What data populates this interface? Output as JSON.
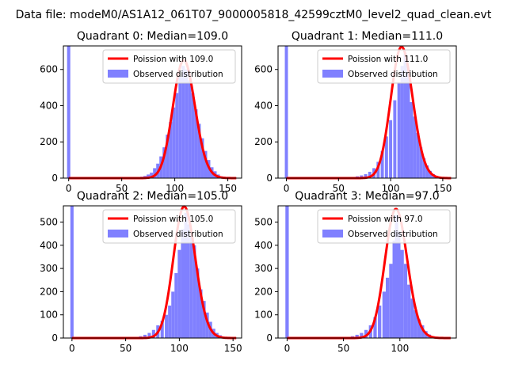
{
  "figure": {
    "suptitle": "Data file: modeM0/AS1A12_061T07_9000005818_42599cztM0_level2_quad_clean.evt"
  },
  "colors": {
    "hist": "#8080ff",
    "model": "#ff0000",
    "axis": "#000000",
    "legend_border": "#cccccc"
  },
  "chart_data": [
    {
      "type": "bar",
      "title": "Quadrant 0: Median=109.0",
      "median": 109.0,
      "xlim": [
        -5,
        163
      ],
      "ylim": [
        0,
        730
      ],
      "xticks": [
        0,
        50,
        100,
        150
      ],
      "yticks": [
        0,
        200,
        400,
        600
      ],
      "legend": [
        "Poission with 109.0",
        "Observed distribution"
      ],
      "legend_loc": "upper right",
      "spike": {
        "x": 0,
        "value": 730
      },
      "bins": [
        [
          56,
          1
        ],
        [
          60,
          2
        ],
        [
          63,
          3
        ],
        [
          66,
          5
        ],
        [
          69,
          8
        ],
        [
          72,
          12
        ],
        [
          75,
          20
        ],
        [
          78,
          30
        ],
        [
          81,
          55
        ],
        [
          84,
          80
        ],
        [
          87,
          120
        ],
        [
          90,
          170
        ],
        [
          93,
          240
        ],
        [
          96,
          310
        ],
        [
          99,
          390
        ],
        [
          102,
          470
        ],
        [
          105,
          560
        ],
        [
          108,
          620
        ],
        [
          111,
          600
        ],
        [
          114,
          540
        ],
        [
          117,
          470
        ],
        [
          120,
          380
        ],
        [
          123,
          300
        ],
        [
          126,
          220
        ],
        [
          129,
          150
        ],
        [
          132,
          100
        ],
        [
          135,
          60
        ],
        [
          138,
          38
        ],
        [
          141,
          20
        ],
        [
          144,
          10
        ],
        [
          147,
          5
        ],
        [
          150,
          2
        ]
      ]
    },
    {
      "type": "bar",
      "title": "Quadrant 1: Median=111.0",
      "median": 111.0,
      "xlim": [
        -8,
        163
      ],
      "ylim": [
        0,
        730
      ],
      "xticks": [
        0,
        50,
        100,
        150
      ],
      "yticks": [
        0,
        200,
        400,
        600
      ],
      "legend": [
        "Poission with 111.0",
        "Observed distribution"
      ],
      "legend_loc": "upper right",
      "spike": {
        "x": 0,
        "value": 730
      },
      "bins": [
        [
          60,
          3
        ],
        [
          64,
          6
        ],
        [
          68,
          10
        ],
        [
          72,
          15
        ],
        [
          76,
          22
        ],
        [
          80,
          35
        ],
        [
          84,
          55
        ],
        [
          88,
          90
        ],
        [
          92,
          150
        ],
        [
          96,
          230
        ],
        [
          100,
          320
        ],
        [
          104,
          430
        ],
        [
          108,
          530
        ],
        [
          111,
          620
        ],
        [
          114,
          690
        ],
        [
          117,
          600
        ],
        [
          120,
          420
        ],
        [
          123,
          340
        ],
        [
          126,
          250
        ],
        [
          129,
          170
        ],
        [
          132,
          110
        ],
        [
          135,
          70
        ],
        [
          138,
          40
        ],
        [
          141,
          22
        ],
        [
          144,
          12
        ],
        [
          147,
          6
        ],
        [
          150,
          3
        ]
      ]
    },
    {
      "type": "bar",
      "title": "Quadrant 2: Median=105.0",
      "median": 105.0,
      "xlim": [
        -8,
        158
      ],
      "ylim": [
        0,
        570
      ],
      "xticks": [
        0,
        50,
        100,
        150
      ],
      "yticks": [
        0,
        100,
        200,
        300,
        400,
        500
      ],
      "legend": [
        "Poission with 105.0",
        "Observed distribution"
      ],
      "legend_loc": "upper right",
      "spike": {
        "x": 0,
        "value": 570
      },
      "bins": [
        [
          56,
          2
        ],
        [
          60,
          4
        ],
        [
          64,
          8
        ],
        [
          68,
          14
        ],
        [
          72,
          22
        ],
        [
          76,
          35
        ],
        [
          80,
          55
        ],
        [
          84,
          75
        ],
        [
          88,
          100
        ],
        [
          91,
          140
        ],
        [
          94,
          200
        ],
        [
          97,
          280
        ],
        [
          100,
          380
        ],
        [
          103,
          470
        ],
        [
          106,
          540
        ],
        [
          108,
          490
        ],
        [
          111,
          440
        ],
        [
          114,
          400
        ],
        [
          117,
          300
        ],
        [
          120,
          210
        ],
        [
          123,
          160
        ],
        [
          126,
          110
        ],
        [
          129,
          70
        ],
        [
          132,
          40
        ],
        [
          135,
          22
        ],
        [
          138,
          12
        ],
        [
          141,
          6
        ],
        [
          144,
          3
        ]
      ]
    },
    {
      "type": "bar",
      "title": "Quadrant 3: Median=97.0",
      "median": 97.0,
      "xlim": [
        -8,
        150
      ],
      "ylim": [
        0,
        570
      ],
      "xticks": [
        0,
        50,
        100
      ],
      "yticks": [
        0,
        100,
        200,
        300,
        400,
        500
      ],
      "legend": [
        "Poission with 97.0",
        "Observed distribution"
      ],
      "legend_loc": "upper right",
      "spike": {
        "x": 0,
        "value": 570
      },
      "bins": [
        [
          50,
          2
        ],
        [
          54,
          4
        ],
        [
          58,
          8
        ],
        [
          62,
          14
        ],
        [
          66,
          22
        ],
        [
          70,
          35
        ],
        [
          74,
          55
        ],
        [
          78,
          90
        ],
        [
          82,
          140
        ],
        [
          86,
          200
        ],
        [
          89,
          260
        ],
        [
          92,
          320
        ],
        [
          95,
          420
        ],
        [
          97,
          530
        ],
        [
          99,
          460
        ],
        [
          102,
          380
        ],
        [
          105,
          320
        ],
        [
          108,
          230
        ],
        [
          111,
          170
        ],
        [
          114,
          120
        ],
        [
          117,
          80
        ],
        [
          120,
          55
        ],
        [
          123,
          30
        ],
        [
          126,
          15
        ],
        [
          129,
          8
        ],
        [
          132,
          4
        ]
      ]
    }
  ]
}
